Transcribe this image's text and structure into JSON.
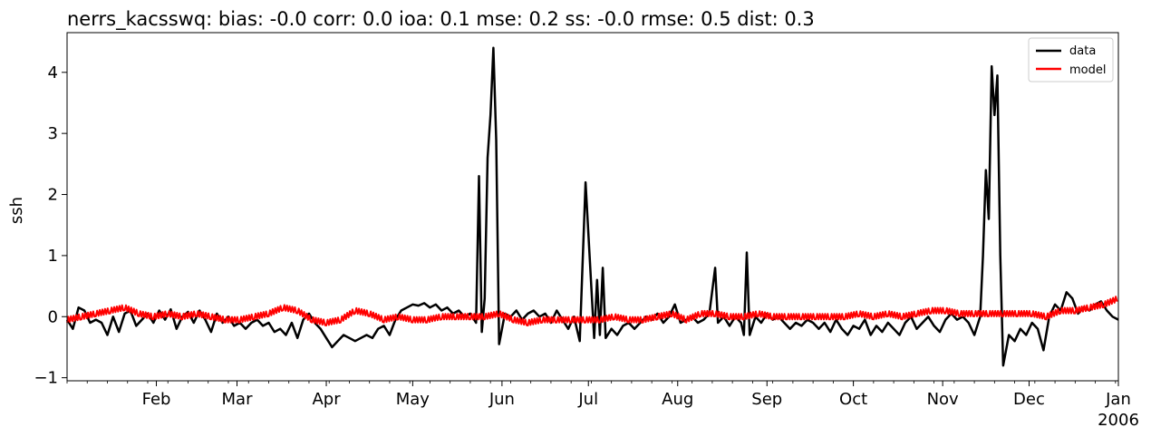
{
  "chart_data": {
    "type": "line",
    "title": "nerrs_kacsswq: bias: -0.0  corr: 0.0  ioa: 0.1  mse: 0.2  ss: -0.0  rmse: 0.5  dist: 0.3",
    "xlabel": "",
    "ylabel": "ssh",
    "x_range": [
      "2005-01-01",
      "2006-01-01"
    ],
    "ylim": [
      -1.05,
      4.65
    ],
    "y_ticks": [
      -1,
      0,
      1,
      2,
      3,
      4
    ],
    "y_tick_labels": [
      "−1",
      "0",
      "1",
      "2",
      "3",
      "4"
    ],
    "x_ticks": [
      {
        "date": "2005-02-01",
        "label": "Feb"
      },
      {
        "date": "2005-03-01",
        "label": "Mar"
      },
      {
        "date": "2005-04-01",
        "label": "Apr"
      },
      {
        "date": "2005-05-01",
        "label": "May"
      },
      {
        "date": "2005-06-01",
        "label": "Jun"
      },
      {
        "date": "2005-07-01",
        "label": "Jul"
      },
      {
        "date": "2005-08-01",
        "label": "Aug"
      },
      {
        "date": "2005-09-01",
        "label": "Sep"
      },
      {
        "date": "2005-10-01",
        "label": "Oct"
      },
      {
        "date": "2005-11-01",
        "label": "Nov"
      },
      {
        "date": "2005-12-01",
        "label": "Dec"
      },
      {
        "date": "2006-01-01",
        "label": "Jan"
      }
    ],
    "x_year_label": "2006",
    "grid": false,
    "legend_position": "top-right",
    "series": [
      {
        "name": "data",
        "color": "#000000",
        "points": [
          [
            "2005-01-01",
            -0.05
          ],
          [
            "2005-01-03",
            -0.2
          ],
          [
            "2005-01-05",
            0.15
          ],
          [
            "2005-01-07",
            0.1
          ],
          [
            "2005-01-09",
            -0.1
          ],
          [
            "2005-01-11",
            -0.05
          ],
          [
            "2005-01-13",
            -0.1
          ],
          [
            "2005-01-15",
            -0.3
          ],
          [
            "2005-01-17",
            0.0
          ],
          [
            "2005-01-19",
            -0.25
          ],
          [
            "2005-01-21",
            0.05
          ],
          [
            "2005-01-23",
            0.1
          ],
          [
            "2005-01-25",
            -0.15
          ],
          [
            "2005-01-27",
            -0.05
          ],
          [
            "2005-01-29",
            0.05
          ],
          [
            "2005-01-31",
            -0.1
          ],
          [
            "2005-02-02",
            0.1
          ],
          [
            "2005-02-04",
            -0.05
          ],
          [
            "2005-02-06",
            0.12
          ],
          [
            "2005-02-08",
            -0.2
          ],
          [
            "2005-02-10",
            0.0
          ],
          [
            "2005-02-12",
            0.08
          ],
          [
            "2005-02-14",
            -0.1
          ],
          [
            "2005-02-16",
            0.1
          ],
          [
            "2005-02-18",
            -0.05
          ],
          [
            "2005-02-20",
            -0.25
          ],
          [
            "2005-02-22",
            0.05
          ],
          [
            "2005-02-24",
            -0.1
          ],
          [
            "2005-02-26",
            0.0
          ],
          [
            "2005-02-28",
            -0.15
          ],
          [
            "2005-03-02",
            -0.1
          ],
          [
            "2005-03-04",
            -0.2
          ],
          [
            "2005-03-06",
            -0.1
          ],
          [
            "2005-03-08",
            -0.05
          ],
          [
            "2005-03-10",
            -0.15
          ],
          [
            "2005-03-12",
            -0.1
          ],
          [
            "2005-03-14",
            -0.25
          ],
          [
            "2005-03-16",
            -0.2
          ],
          [
            "2005-03-18",
            -0.3
          ],
          [
            "2005-03-20",
            -0.1
          ],
          [
            "2005-03-22",
            -0.35
          ],
          [
            "2005-03-24",
            -0.05
          ],
          [
            "2005-03-26",
            0.05
          ],
          [
            "2005-03-28",
            -0.1
          ],
          [
            "2005-03-30",
            -0.2
          ],
          [
            "2005-04-01",
            -0.35
          ],
          [
            "2005-04-03",
            -0.5
          ],
          [
            "2005-04-05",
            -0.4
          ],
          [
            "2005-04-07",
            -0.3
          ],
          [
            "2005-04-09",
            -0.35
          ],
          [
            "2005-04-11",
            -0.4
          ],
          [
            "2005-04-13",
            -0.35
          ],
          [
            "2005-04-15",
            -0.3
          ],
          [
            "2005-04-17",
            -0.35
          ],
          [
            "2005-04-19",
            -0.2
          ],
          [
            "2005-04-21",
            -0.15
          ],
          [
            "2005-04-23",
            -0.3
          ],
          [
            "2005-04-25",
            -0.05
          ],
          [
            "2005-04-27",
            0.1
          ],
          [
            "2005-04-29",
            0.15
          ],
          [
            "2005-05-01",
            0.2
          ],
          [
            "2005-05-03",
            0.18
          ],
          [
            "2005-05-05",
            0.22
          ],
          [
            "2005-05-07",
            0.15
          ],
          [
            "2005-05-09",
            0.2
          ],
          [
            "2005-05-11",
            0.1
          ],
          [
            "2005-05-13",
            0.15
          ],
          [
            "2005-05-15",
            0.05
          ],
          [
            "2005-05-17",
            0.1
          ],
          [
            "2005-05-19",
            0.0
          ],
          [
            "2005-05-21",
            0.05
          ],
          [
            "2005-05-23",
            -0.1
          ],
          [
            "2005-05-24",
            2.3
          ],
          [
            "2005-05-25",
            -0.25
          ],
          [
            "2005-05-26",
            0.3
          ],
          [
            "2005-05-27",
            2.6
          ],
          [
            "2005-05-28",
            3.3
          ],
          [
            "2005-05-29",
            4.4
          ],
          [
            "2005-05-30",
            2.9
          ],
          [
            "2005-05-31",
            -0.45
          ],
          [
            "2005-06-02",
            0.05
          ],
          [
            "2005-06-04",
            0.0
          ],
          [
            "2005-06-06",
            0.1
          ],
          [
            "2005-06-08",
            -0.05
          ],
          [
            "2005-06-10",
            0.05
          ],
          [
            "2005-06-12",
            0.1
          ],
          [
            "2005-06-14",
            0.0
          ],
          [
            "2005-06-16",
            0.05
          ],
          [
            "2005-06-18",
            -0.1
          ],
          [
            "2005-06-20",
            0.1
          ],
          [
            "2005-06-22",
            -0.05
          ],
          [
            "2005-06-24",
            -0.2
          ],
          [
            "2005-06-26",
            0.0
          ],
          [
            "2005-06-28",
            -0.4
          ],
          [
            "2005-06-30",
            2.2
          ],
          [
            "2005-07-02",
            0.5
          ],
          [
            "2005-07-03",
            -0.35
          ],
          [
            "2005-07-04",
            0.6
          ],
          [
            "2005-07-05",
            -0.3
          ],
          [
            "2005-07-06",
            0.8
          ],
          [
            "2005-07-07",
            -0.35
          ],
          [
            "2005-07-09",
            -0.2
          ],
          [
            "2005-07-11",
            -0.3
          ],
          [
            "2005-07-13",
            -0.15
          ],
          [
            "2005-07-15",
            -0.1
          ],
          [
            "2005-07-17",
            -0.2
          ],
          [
            "2005-07-19",
            -0.1
          ],
          [
            "2005-07-21",
            0.0
          ],
          [
            "2005-07-23",
            -0.05
          ],
          [
            "2005-07-25",
            0.05
          ],
          [
            "2005-07-27",
            -0.1
          ],
          [
            "2005-07-29",
            0.0
          ],
          [
            "2005-07-31",
            0.2
          ],
          [
            "2005-08-02",
            -0.1
          ],
          [
            "2005-08-04",
            -0.05
          ],
          [
            "2005-08-06",
            0.0
          ],
          [
            "2005-08-08",
            -0.1
          ],
          [
            "2005-08-10",
            -0.05
          ],
          [
            "2005-08-12",
            0.05
          ],
          [
            "2005-08-14",
            0.8
          ],
          [
            "2005-08-15",
            -0.1
          ],
          [
            "2005-08-17",
            0.0
          ],
          [
            "2005-08-19",
            -0.15
          ],
          [
            "2005-08-21",
            0.0
          ],
          [
            "2005-08-23",
            -0.1
          ],
          [
            "2005-08-24",
            -0.3
          ],
          [
            "2005-08-25",
            1.05
          ],
          [
            "2005-08-26",
            -0.3
          ],
          [
            "2005-08-28",
            0.0
          ],
          [
            "2005-08-30",
            -0.1
          ],
          [
            "2005-09-01",
            0.05
          ],
          [
            "2005-09-03",
            -0.05
          ],
          [
            "2005-09-05",
            0.0
          ],
          [
            "2005-09-07",
            -0.1
          ],
          [
            "2005-09-09",
            -0.2
          ],
          [
            "2005-09-11",
            -0.1
          ],
          [
            "2005-09-13",
            -0.15
          ],
          [
            "2005-09-15",
            -0.05
          ],
          [
            "2005-09-17",
            -0.1
          ],
          [
            "2005-09-19",
            -0.2
          ],
          [
            "2005-09-21",
            -0.1
          ],
          [
            "2005-09-23",
            -0.25
          ],
          [
            "2005-09-25",
            -0.05
          ],
          [
            "2005-09-27",
            -0.2
          ],
          [
            "2005-09-29",
            -0.3
          ],
          [
            "2005-10-01",
            -0.15
          ],
          [
            "2005-10-03",
            -0.2
          ],
          [
            "2005-10-05",
            -0.05
          ],
          [
            "2005-10-07",
            -0.3
          ],
          [
            "2005-10-09",
            -0.15
          ],
          [
            "2005-10-11",
            -0.25
          ],
          [
            "2005-10-13",
            -0.1
          ],
          [
            "2005-10-15",
            -0.2
          ],
          [
            "2005-10-17",
            -0.3
          ],
          [
            "2005-10-19",
            -0.1
          ],
          [
            "2005-10-21",
            0.0
          ],
          [
            "2005-10-23",
            -0.2
          ],
          [
            "2005-10-25",
            -0.1
          ],
          [
            "2005-10-27",
            0.0
          ],
          [
            "2005-10-29",
            -0.15
          ],
          [
            "2005-10-31",
            -0.25
          ],
          [
            "2005-11-02",
            -0.05
          ],
          [
            "2005-11-04",
            0.05
          ],
          [
            "2005-11-06",
            -0.05
          ],
          [
            "2005-11-08",
            0.0
          ],
          [
            "2005-11-10",
            -0.1
          ],
          [
            "2005-11-12",
            -0.3
          ],
          [
            "2005-11-14",
            0.0
          ],
          [
            "2005-11-15",
            1.0
          ],
          [
            "2005-11-16",
            2.4
          ],
          [
            "2005-11-17",
            1.6
          ],
          [
            "2005-11-18",
            4.1
          ],
          [
            "2005-11-19",
            3.3
          ],
          [
            "2005-11-20",
            3.95
          ],
          [
            "2005-11-21",
            1.0
          ],
          [
            "2005-11-22",
            -0.8
          ],
          [
            "2005-11-24",
            -0.3
          ],
          [
            "2005-11-26",
            -0.4
          ],
          [
            "2005-11-28",
            -0.2
          ],
          [
            "2005-11-30",
            -0.3
          ],
          [
            "2005-12-02",
            -0.1
          ],
          [
            "2005-12-04",
            -0.2
          ],
          [
            "2005-12-06",
            -0.55
          ],
          [
            "2005-12-08",
            0.0
          ],
          [
            "2005-12-10",
            0.2
          ],
          [
            "2005-12-12",
            0.1
          ],
          [
            "2005-12-14",
            0.4
          ],
          [
            "2005-12-16",
            0.3
          ],
          [
            "2005-12-18",
            0.05
          ],
          [
            "2005-12-20",
            0.15
          ],
          [
            "2005-12-22",
            0.1
          ],
          [
            "2005-12-24",
            0.2
          ],
          [
            "2005-12-26",
            0.25
          ],
          [
            "2005-12-28",
            0.1
          ],
          [
            "2005-12-30",
            0.0
          ],
          [
            "2006-01-01",
            -0.05
          ]
        ]
      },
      {
        "name": "model",
        "color": "#ff0000",
        "points": [
          [
            "2005-01-01",
            -0.05
          ],
          [
            "2005-01-06",
            0.0
          ],
          [
            "2005-01-11",
            0.05
          ],
          [
            "2005-01-16",
            0.1
          ],
          [
            "2005-01-21",
            0.15
          ],
          [
            "2005-01-26",
            0.05
          ],
          [
            "2005-01-31",
            0.0
          ],
          [
            "2005-02-05",
            0.05
          ],
          [
            "2005-02-10",
            0.0
          ],
          [
            "2005-02-15",
            0.05
          ],
          [
            "2005-02-20",
            0.0
          ],
          [
            "2005-02-25",
            -0.05
          ],
          [
            "2005-03-02",
            -0.05
          ],
          [
            "2005-03-07",
            0.0
          ],
          [
            "2005-03-12",
            0.05
          ],
          [
            "2005-03-17",
            0.15
          ],
          [
            "2005-03-22",
            0.1
          ],
          [
            "2005-03-27",
            -0.05
          ],
          [
            "2005-04-01",
            -0.1
          ],
          [
            "2005-04-06",
            -0.05
          ],
          [
            "2005-04-11",
            0.1
          ],
          [
            "2005-04-16",
            0.05
          ],
          [
            "2005-04-21",
            -0.05
          ],
          [
            "2005-04-26",
            0.0
          ],
          [
            "2005-05-01",
            -0.05
          ],
          [
            "2005-05-06",
            -0.05
          ],
          [
            "2005-05-11",
            0.0
          ],
          [
            "2005-05-16",
            0.0
          ],
          [
            "2005-05-21",
            0.0
          ],
          [
            "2005-05-26",
            0.0
          ],
          [
            "2005-05-31",
            0.05
          ],
          [
            "2005-06-05",
            -0.05
          ],
          [
            "2005-06-10",
            -0.1
          ],
          [
            "2005-06-15",
            -0.05
          ],
          [
            "2005-06-20",
            -0.05
          ],
          [
            "2005-06-25",
            -0.05
          ],
          [
            "2005-06-30",
            -0.05
          ],
          [
            "2005-07-05",
            -0.05
          ],
          [
            "2005-07-10",
            0.0
          ],
          [
            "2005-07-15",
            -0.05
          ],
          [
            "2005-07-20",
            -0.05
          ],
          [
            "2005-07-25",
            0.0
          ],
          [
            "2005-07-30",
            0.05
          ],
          [
            "2005-08-04",
            -0.05
          ],
          [
            "2005-08-09",
            0.05
          ],
          [
            "2005-08-14",
            0.05
          ],
          [
            "2005-08-19",
            0.0
          ],
          [
            "2005-08-24",
            0.0
          ],
          [
            "2005-08-29",
            0.05
          ],
          [
            "2005-09-03",
            0.0
          ],
          [
            "2005-09-08",
            0.0
          ],
          [
            "2005-09-13",
            0.0
          ],
          [
            "2005-09-18",
            0.0
          ],
          [
            "2005-09-23",
            0.0
          ],
          [
            "2005-09-28",
            0.0
          ],
          [
            "2005-10-03",
            0.05
          ],
          [
            "2005-10-08",
            0.0
          ],
          [
            "2005-10-13",
            0.05
          ],
          [
            "2005-10-18",
            0.0
          ],
          [
            "2005-10-23",
            0.05
          ],
          [
            "2005-10-28",
            0.1
          ],
          [
            "2005-11-02",
            0.1
          ],
          [
            "2005-11-07",
            0.05
          ],
          [
            "2005-11-12",
            0.05
          ],
          [
            "2005-11-17",
            0.05
          ],
          [
            "2005-11-22",
            0.05
          ],
          [
            "2005-11-27",
            0.05
          ],
          [
            "2005-12-02",
            0.05
          ],
          [
            "2005-12-07",
            0.0
          ],
          [
            "2005-12-12",
            0.1
          ],
          [
            "2005-12-17",
            0.1
          ],
          [
            "2005-12-22",
            0.15
          ],
          [
            "2005-12-27",
            0.2
          ],
          [
            "2006-01-01",
            0.3
          ]
        ]
      }
    ]
  }
}
